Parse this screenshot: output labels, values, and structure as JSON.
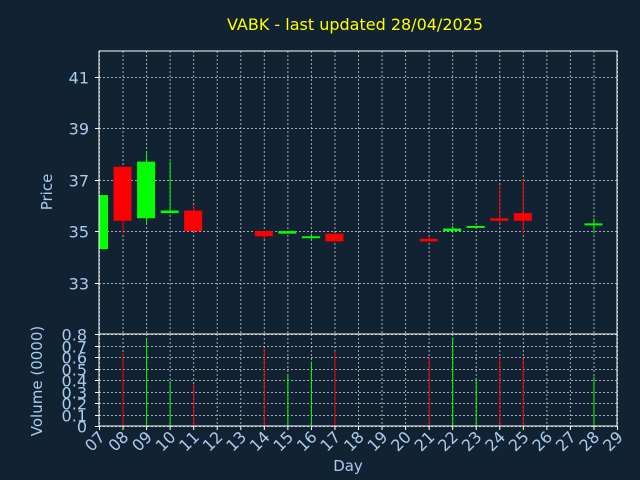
{
  "colors": {
    "background": "#112233",
    "text": "#aaccee",
    "title": "#ffff00",
    "frame": "#ffffff",
    "grid": "#cccccc",
    "up": "#00ff00",
    "down": "#ff0000"
  },
  "chart_data": {
    "type": "candlestick",
    "title": "VABK - last updated 28/04/2025",
    "xlabel": "Day",
    "ylabel_price": "Price",
    "ylabel_volume": "Volume (0000)",
    "x_ticks": [
      "07",
      "08",
      "09",
      "10",
      "11",
      "12",
      "13",
      "14",
      "15",
      "16",
      "17",
      "18",
      "19",
      "20",
      "21",
      "22",
      "23",
      "24",
      "25",
      "26",
      "27",
      "28",
      "29"
    ],
    "price_ticks": [
      "33",
      "35",
      "37",
      "39",
      "41"
    ],
    "volume_ticks": [
      "0",
      "0.1",
      "0.2",
      "0.3",
      "0.4",
      "0.5",
      "0.6",
      "0.7",
      "0.8"
    ],
    "price_ylim": [
      31.0,
      42.0
    ],
    "volume_ylim": [
      0.0,
      0.8
    ],
    "grid": true,
    "candles": [
      {
        "day": "07",
        "open": 34.3,
        "close": 36.4,
        "high": 36.4,
        "low": 34.3,
        "volume": 0.0
      },
      {
        "day": "08",
        "open": 37.5,
        "close": 35.4,
        "high": 37.5,
        "low": 34.9,
        "volume": 0.63
      },
      {
        "day": "09",
        "open": 35.5,
        "close": 37.7,
        "high": 38.1,
        "low": 35.3,
        "volume": 0.76
      },
      {
        "day": "10",
        "open": 35.7,
        "close": 35.8,
        "high": 37.7,
        "low": 35.7,
        "volume": 0.39
      },
      {
        "day": "11",
        "open": 35.8,
        "close": 35.0,
        "high": 36.0,
        "low": 35.0,
        "volume": 0.36
      },
      {
        "day": "14",
        "open": 35.0,
        "close": 34.8,
        "high": 35.0,
        "low": 34.7,
        "volume": 0.67
      },
      {
        "day": "15",
        "open": 34.9,
        "close": 35.0,
        "high": 35.0,
        "low": 34.9,
        "volume": 0.44
      },
      {
        "day": "16",
        "open": 34.8,
        "close": 34.8,
        "high": 34.9,
        "low": 34.7,
        "volume": 0.56
      },
      {
        "day": "17",
        "open": 34.9,
        "close": 34.6,
        "high": 34.9,
        "low": 34.6,
        "volume": 0.65
      },
      {
        "day": "21",
        "open": 34.7,
        "close": 34.6,
        "high": 34.8,
        "low": 34.6,
        "volume": 0.59
      },
      {
        "day": "22",
        "open": 35.0,
        "close": 35.1,
        "high": 35.2,
        "low": 35.0,
        "volume": 0.77
      },
      {
        "day": "23",
        "open": 35.2,
        "close": 35.2,
        "high": 35.2,
        "low": 35.2,
        "volume": 0.39
      },
      {
        "day": "24",
        "open": 35.5,
        "close": 35.4,
        "high": 36.8,
        "low": 35.3,
        "volume": 0.6
      },
      {
        "day": "25",
        "open": 35.7,
        "close": 35.4,
        "high": 37.0,
        "low": 34.9,
        "volume": 0.59
      },
      {
        "day": "28",
        "open": 35.3,
        "close": 35.3,
        "high": 35.5,
        "low": 34.9,
        "volume": 0.43
      }
    ]
  }
}
